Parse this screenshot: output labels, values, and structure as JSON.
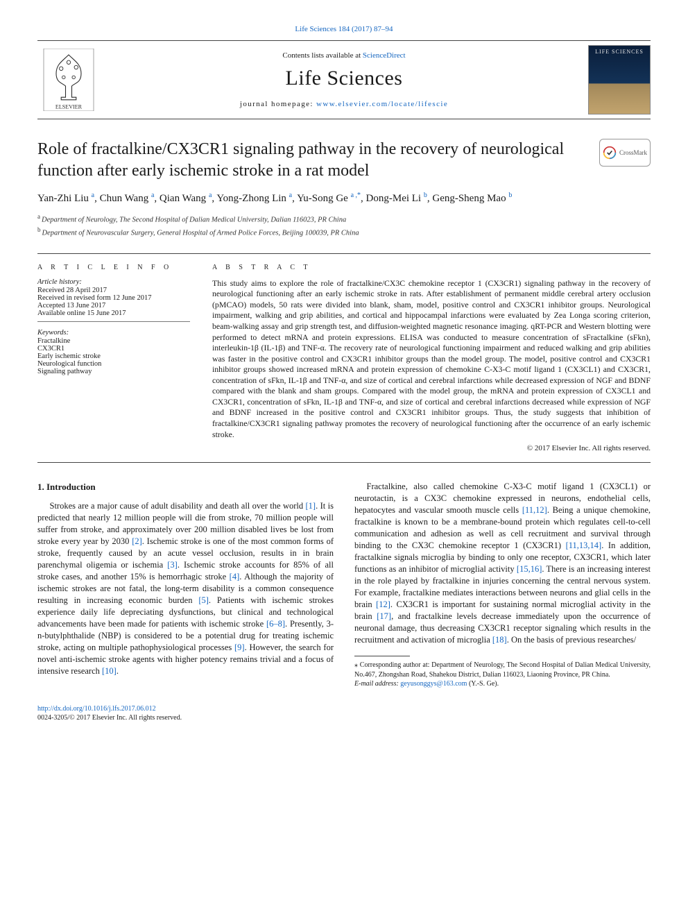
{
  "top": {
    "citation_text": "Life Sciences 184 (2017) 87–94",
    "citation_href": "#"
  },
  "masthead": {
    "contents_prefix": "Contents lists available at ",
    "contents_link": "ScienceDirect",
    "journal_name": "Life Sciences",
    "homepage_label": "journal homepage: ",
    "homepage_url": "www.elsevier.com/locate/lifescie",
    "publisher_name": "ELSEVIER",
    "cover_label": "LIFE SCIENCES"
  },
  "article": {
    "title": "Role of fractalkine/CX3CR1 signaling pathway in the recovery of neurological function after early ischemic stroke in a rat model",
    "crossmark_label": "CrossMark"
  },
  "authors": [
    {
      "name": "Yan-Zhi Liu",
      "aff": "a"
    },
    {
      "name": "Chun Wang",
      "aff": "a"
    },
    {
      "name": "Qian Wang",
      "aff": "a"
    },
    {
      "name": "Yong-Zhong Lin",
      "aff": "a"
    },
    {
      "name": "Yu-Song Ge",
      "aff": "a",
      "corresponding": true
    },
    {
      "name": "Dong-Mei Li",
      "aff": "b"
    },
    {
      "name": "Geng-Sheng Mao",
      "aff": "b"
    }
  ],
  "affiliations": [
    {
      "key": "a",
      "text": "Department of Neurology, The Second Hospital of Dalian Medical University, Dalian 116023, PR China"
    },
    {
      "key": "b",
      "text": "Department of Neurovascular Surgery, General Hospital of Armed Police Forces, Beijing 100039, PR China"
    }
  ],
  "info": {
    "heading": "A R T I C L E   I N F O",
    "history_label": "Article history:",
    "received": "Received 28 April 2017",
    "revised": "Received in revised form 12 June 2017",
    "accepted": "Accepted 13 June 2017",
    "online": "Available online 15 June 2017",
    "keywords_label": "Keywords:",
    "keywords": [
      "Fractalkine",
      "CX3CR1",
      "Early ischemic stroke",
      "Neurological function",
      "Signaling pathway"
    ]
  },
  "abstract": {
    "heading": "A B S T R A C T",
    "text": "This study aims to explore the role of fractalkine/CX3C chemokine receptor 1 (CX3CR1) signaling pathway in the recovery of neurological functioning after an early ischemic stroke in rats. After establishment of permanent middle cerebral artery occlusion (pMCAO) models, 50 rats were divided into blank, sham, model, positive control and CX3CR1 inhibitor groups. Neurological impairment, walking and grip abilities, and cortical and hippocampal infarctions were evaluated by Zea Longa scoring criterion, beam-walking assay and grip strength test, and diffusion-weighted magnetic resonance imaging. qRT-PCR and Western blotting were performed to detect mRNA and protein expressions. ELISA was conducted to measure concentration of sFractalkine (sFkn), interleukin-1β (IL-1β) and TNF-α. The recovery rate of neurological functioning impairment and reduced walking and grip abilities was faster in the positive control and CX3CR1 inhibitor groups than the model group. The model, positive control and CX3CR1 inhibitor groups showed increased mRNA and protein expression of chemokine C-X3-C motif ligand 1 (CX3CL1) and CX3CR1, concentration of sFkn, IL-1β and TNF-α, and size of cortical and cerebral infarctions while decreased expression of NGF and BDNF compared with the blank and sham groups. Compared with the model group, the mRNA and protein expression of CX3CL1 and CX3CR1, concentration of sFkn, IL-1β and TNF-α, and size of cortical and cerebral infarctions decreased while expression of NGF and BDNF increased in the positive control and CX3CR1 inhibitor groups. Thus, the study suggests that inhibition of fractalkine/CX3CR1 signaling pathway promotes the recovery of neurological functioning after the occurrence of an early ischemic stroke.",
    "copyright": "© 2017 Elsevier Inc. All rights reserved."
  },
  "body": {
    "intro_heading": "1. Introduction",
    "para1_a": "Strokes are a major cause of adult disability and death all over the world ",
    "cite1": "[1]",
    "para1_b": ". It is predicted that nearly 12 million people will die from stroke, 70 million people will suffer from stroke, and approximately over 200 million disabled lives be lost from stroke every year by 2030 ",
    "cite2": "[2]",
    "para1_c": ". Ischemic stroke is one of the most common forms of stroke, frequently caused by an acute vessel occlusion, results in in brain parenchymal oligemia or ischemia ",
    "cite3": "[3]",
    "para1_d": ". Ischemic stroke accounts for 85% of all stroke cases, and another 15% is hemorrhagic stroke ",
    "cite4": "[4]",
    "para1_e": ". Although the majority of ischemic strokes are not fatal, the long-term disability is a common consequence resulting in increasing economic burden ",
    "cite5": "[5]",
    "para1_f": ". Patients with ischemic strokes experience daily life depreciating dysfunctions, but clinical and technological advancements have been made for patients with ischemic stroke ",
    "cite68": "[6–8]",
    "para1_g": ". Presently, 3-n-",
    "para1_h": "butylphthalide (NBP) is considered to be a potential drug for treating ischemic stroke, acting on multiple pathophysiological processes ",
    "cite9": "[9]",
    "para1_i": ". However, the search for novel anti-ischemic stroke agents with higher potency remains trivial and a focus of intensive research ",
    "cite10": "[10]",
    "para1_j": ".",
    "para2_a": "Fractalkine, also called chemokine C-X3-C motif ligand 1 (CX3CL1) or neurotactin, is a CX3C chemokine expressed in neurons, endothelial cells, hepatocytes and vascular smooth muscle cells ",
    "cite1112": "[11,12]",
    "para2_b": ". Being a unique chemokine, fractalkine is known to be a membrane-bound protein which regulates cell-to-cell communication and adhesion as well as cell recruitment and survival through binding to the CX3C chemokine receptor 1 (CX3CR1) ",
    "cite111314": "[11,13,14]",
    "para2_c": ". In addition, fractalkine signals microglia by binding to only one receptor, CX3CR1, which later functions as an inhibitor of microglial activity ",
    "cite1516": "[15,16]",
    "para2_d": ". There is an increasing interest in the role played by fractalkine in injuries concerning the central nervous system. For example, fractalkine mediates interactions between neurons and glial cells in the brain ",
    "cite12b": "[12]",
    "para2_e": ". CX3CR1 is important for sustaining normal microglial activity in the brain ",
    "cite17": "[17]",
    "para2_f": ", and fractalkine levels decrease immediately upon the occurrence of neuronal damage, thus decreasing CX3CR1 receptor signaling which results in the recruitment and activation of microglia ",
    "cite18": "[18]",
    "para2_g": ". On the basis of previous researches/"
  },
  "footnotes": {
    "corr": "⁎ Corresponding author at: Department of Neurology, The Second Hospital of Dalian Medical University, No.467, Zhongshan Road, Shahekou District, Dalian 116023, Liaoning Province, PR China.",
    "email_label": "E-mail address: ",
    "email": "geyusonggys@163.com",
    "email_name": " (Y.-S. Ge)."
  },
  "doi": {
    "url": "http://dx.doi.org/10.1016/j.lfs.2017.06.012",
    "issn_line": "0024-3205/© 2017 Elsevier Inc. All rights reserved."
  },
  "colors": {
    "link": "#1566c0",
    "text": "#1a1a1a",
    "rule": "#444444"
  }
}
